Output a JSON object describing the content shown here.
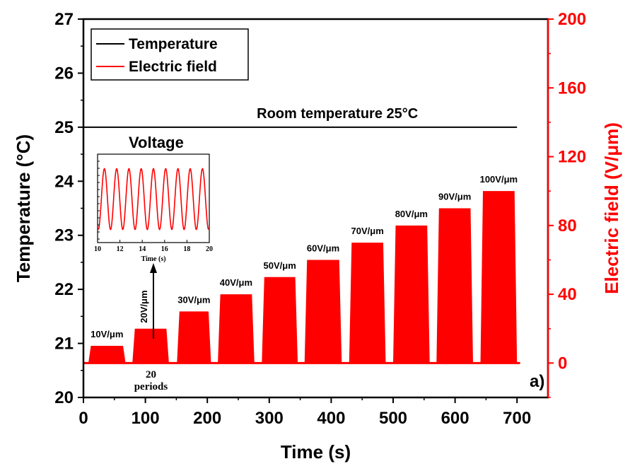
{
  "chart_data": {
    "type": "line",
    "xlabel": "Time (s)",
    "ylabel_left": "Temperature (°C)",
    "ylabel_right": "Electric field (V/μm)",
    "xlim": [
      0,
      750
    ],
    "ylim_left": [
      20,
      27
    ],
    "ylim_right": [
      -20,
      200
    ],
    "x_ticks": [
      0,
      100,
      200,
      300,
      400,
      500,
      600,
      700
    ],
    "y_left_ticks": [
      20,
      21,
      22,
      23,
      24,
      25,
      26,
      27
    ],
    "y_right_ticks": [
      0,
      40,
      80,
      120,
      160,
      200
    ],
    "grid": false,
    "legend_position": "top-left",
    "colors": {
      "temperature": "#000000",
      "electric_field": "#ff0000",
      "axis_right": "#ff0000"
    },
    "series": [
      {
        "name": "Temperature",
        "axis": "left",
        "x": [
          0,
          700
        ],
        "y": [
          25,
          25
        ]
      },
      {
        "name": "Electric field",
        "axis": "right",
        "shape": "trapezoid_pulses",
        "baseline": 0,
        "rise_s": 4
      }
    ],
    "pulses": [
      {
        "label": "10V/μm",
        "start": 8,
        "end": 68,
        "amplitude": 10
      },
      {
        "label": "20V/μm",
        "start": 79,
        "end": 138,
        "amplitude": 20
      },
      {
        "label": "30V/μm",
        "start": 151,
        "end": 206,
        "amplitude": 30
      },
      {
        "label": "40V/μm",
        "start": 217,
        "end": 276,
        "amplitude": 40
      },
      {
        "label": "50V/μm",
        "start": 288,
        "end": 346,
        "amplitude": 50
      },
      {
        "label": "60V/μm",
        "start": 357,
        "end": 417,
        "amplitude": 60
      },
      {
        "label": "70V/μm",
        "start": 429,
        "end": 488,
        "amplitude": 70
      },
      {
        "label": "80V/μm",
        "start": 500,
        "end": 559,
        "amplitude": 80
      },
      {
        "label": "90V/μm",
        "start": 570,
        "end": 629,
        "amplitude": 90
      },
      {
        "label": "100V/μm",
        "start": 641,
        "end": 700,
        "amplitude": 100
      }
    ],
    "annotations": {
      "room_temperature": "Room temperature 25°C",
      "periods": [
        "20",
        "periods"
      ],
      "panel_label": "a)"
    },
    "inset": {
      "title": "Voltage",
      "xlabel": "Time (s)",
      "xlim": [
        10,
        20
      ],
      "x_ticks": [
        10,
        12,
        14,
        16,
        18,
        20
      ],
      "cycles": 9,
      "color": "#ff0000"
    }
  }
}
